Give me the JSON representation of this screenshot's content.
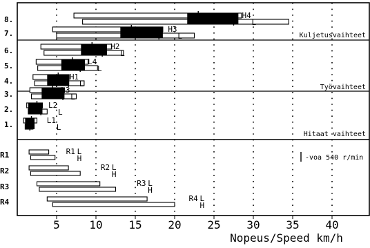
{
  "chart_data": {
    "type": "bar",
    "subtype": "gear speed ranges (floating horizontal bars)",
    "xlabel": "Nopeus/Speed km/h",
    "xlim": [
      0,
      49
    ],
    "xticks": [
      5,
      10,
      15,
      20,
      25,
      30,
      35,
      40
    ],
    "grid": "vertical dotted lines at x ticks",
    "section_labels": [
      "Kuljetusvaihteet",
      "Työvaihteet",
      "Hitaat vaihteet"
    ],
    "legend": {
      "symbol": "|",
      "text": "-voa 540 r/min"
    },
    "forward_gears": [
      {
        "label": "1.",
        "group": "L1",
        "bars": [
          {
            "range": "L",
            "min": 0.8,
            "max": 2.5,
            "pto_540": 1.8
          },
          {
            "range": "H",
            "min": 1.0,
            "max": 2.0,
            "pto_540": 1.6
          }
        ]
      },
      {
        "label": "2.",
        "group": "L2",
        "bars": [
          {
            "range": "L",
            "min": 1.2,
            "max": 3.2,
            "pto_540": 2.5
          },
          {
            "range": "H",
            "min": 1.4,
            "max": 3.8,
            "pto_540": 3.0
          }
        ]
      },
      {
        "label": "3.",
        "group": "L3",
        "bars": [
          {
            "range": "L",
            "min": 1.6,
            "max": 6.0,
            "pto_540": 4.5
          },
          {
            "range": "H",
            "min": 1.8,
            "max": 7.5,
            "pto_540": 5.8
          }
        ]
      },
      {
        "label": "4.",
        "group": "H1",
        "bars": [
          {
            "range": "L",
            "min": 2.0,
            "max": 6.6,
            "pto_540": 5.2
          },
          {
            "range": "H",
            "min": 2.2,
            "max": 8.5,
            "pto_540": 6.5
          }
        ]
      },
      {
        "label": "5.",
        "group": "L4",
        "bars": [
          {
            "range": "L",
            "min": 2.4,
            "max": 9.0,
            "pto_540": 7.0
          },
          {
            "range": "H",
            "min": 2.6,
            "max": 10.2,
            "pto_540": 8.0
          }
        ]
      },
      {
        "label": "6.",
        "group": "H2",
        "bars": [
          {
            "range": "L",
            "min": 3.0,
            "max": 12.0,
            "pto_540": 9.5
          },
          {
            "range": "H",
            "min": 3.4,
            "max": 13.5,
            "pto_540": 10.8
          }
        ]
      },
      {
        "label": "7.",
        "group": "H3",
        "bars": [
          {
            "range": "L",
            "min": 4.5,
            "max": 18.5,
            "pto_540": 14.5
          },
          {
            "range": "H",
            "min": 5.0,
            "max": 22.5,
            "pto_540": 18.0
          }
        ]
      },
      {
        "label": "8.",
        "group": "H4",
        "bars": [
          {
            "range": "L",
            "min": 7.2,
            "max": 28.5,
            "pto_540": 23.0
          },
          {
            "range": "H",
            "min": 8.3,
            "max": 34.5,
            "pto_540": 27.5
          }
        ]
      }
    ],
    "reverse_gears": [
      {
        "label": "R1",
        "bars": [
          {
            "range": "L",
            "min": 1.5,
            "max": 4.0
          },
          {
            "range": "H",
            "min": 1.7,
            "max": 4.8
          }
        ]
      },
      {
        "label": "R2",
        "bars": [
          {
            "range": "L",
            "min": 1.5,
            "max": 6.5
          },
          {
            "range": "H",
            "min": 1.7,
            "max": 8.0
          }
        ]
      },
      {
        "label": "R3",
        "bars": [
          {
            "range": "L",
            "min": 2.5,
            "max": 10.5
          },
          {
            "range": "H",
            "min": 2.8,
            "max": 12.5
          }
        ]
      },
      {
        "label": "R4",
        "bars": [
          {
            "range": "L",
            "min": 3.8,
            "max": 16.5
          },
          {
            "range": "H",
            "min": 4.5,
            "max": 20.0
          }
        ]
      }
    ]
  }
}
